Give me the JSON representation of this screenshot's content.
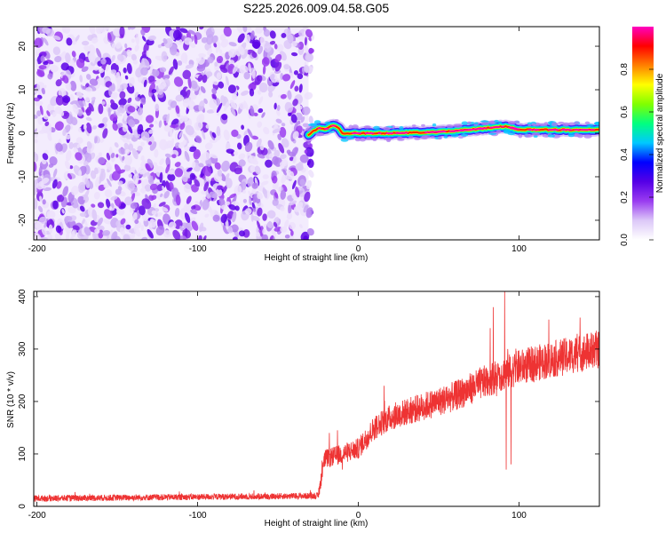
{
  "page_title": "S225.2026.009.04.58.G05",
  "chart_data": [
    {
      "type": "heatmap",
      "title": "S225.2026.009.04.58.G05",
      "xlabel": "Height of straight line (km)",
      "ylabel": "Frequency (Hz)",
      "xlim": [
        -202,
        150
      ],
      "ylim": [
        -24.5,
        24.5
      ],
      "x_ticks": [
        "-200",
        "-100",
        "0",
        "100"
      ],
      "x_tick_values": [
        -200,
        -100,
        0,
        100
      ],
      "y_ticks": [
        "-20",
        "-10",
        "0",
        "10",
        "20"
      ],
      "y_tick_values": [
        -20,
        -10,
        0,
        10,
        20
      ],
      "noise_region": {
        "x_range": [
          -202,
          -31
        ],
        "description_level": "low normalized amplitude (purple, ~0.0-0.1)"
      },
      "signal_track": {
        "description_level": "high normalized amplitude (red core ~0.9-1.0)",
        "points": [
          [
            -31,
            -0.5
          ],
          [
            -28,
            0.5
          ],
          [
            -24,
            1.2
          ],
          [
            -20,
            1.0
          ],
          [
            -16,
            1.8
          ],
          [
            -13,
            1.5
          ],
          [
            -10,
            0.0
          ],
          [
            0,
            0.0
          ],
          [
            20,
            0.0
          ],
          [
            40,
            0.2
          ],
          [
            60,
            0.5
          ],
          [
            80,
            1.2
          ],
          [
            92,
            1.6
          ],
          [
            100,
            0.8
          ],
          [
            150,
            0.8
          ]
        ]
      },
      "colorbar": {
        "label": "Normalized spectral amplitude",
        "ticks": [
          "0.0",
          "0.2",
          "0.4",
          "0.6",
          "0.8"
        ],
        "tick_values": [
          0.0,
          0.2,
          0.4,
          0.6,
          0.8
        ],
        "range": [
          0.0,
          1.0
        ],
        "colormap": [
          "#ffffff",
          "#dcc8f8",
          "#9a3cf0",
          "#5500e6",
          "#0000ff",
          "#00c8ff",
          "#00ff80",
          "#80ff00",
          "#ffff00",
          "#ff8000",
          "#ff0000",
          "#ff00c0"
        ]
      }
    },
    {
      "type": "line",
      "xlabel": "Height of straight line (km)",
      "ylabel": "SNR (10 * v/v)",
      "xlim": [
        -202,
        150
      ],
      "ylim": [
        0,
        410
      ],
      "x_ticks": [
        "-200",
        "-100",
        "0",
        "100"
      ],
      "x_tick_values": [
        -200,
        -100,
        0,
        100
      ],
      "y_ticks": [
        "0",
        "100",
        "200",
        "300",
        "400"
      ],
      "y_tick_values": [
        0,
        100,
        200,
        300,
        400
      ],
      "line_color": "#ee3333",
      "trend_points": [
        [
          -202,
          15
        ],
        [
          -100,
          18
        ],
        [
          -25,
          20
        ],
        [
          -21,
          90
        ],
        [
          -10,
          100
        ],
        [
          0,
          110
        ],
        [
          10,
          150
        ],
        [
          20,
          170
        ],
        [
          40,
          190
        ],
        [
          60,
          210
        ],
        [
          80,
          240
        ],
        [
          88,
          250
        ],
        [
          100,
          265
        ],
        [
          120,
          280
        ],
        [
          150,
          300
        ]
      ],
      "spikes": [
        [
          -18,
          140
        ],
        [
          -13,
          145
        ],
        [
          -10,
          70
        ],
        [
          16,
          230
        ],
        [
          82,
          340
        ],
        [
          84,
          380
        ],
        [
          86,
          210
        ],
        [
          91,
          410
        ],
        [
          92,
          70
        ],
        [
          93,
          300
        ],
        [
          95,
          80
        ],
        [
          125,
          300
        ],
        [
          138,
          360
        ]
      ]
    }
  ]
}
